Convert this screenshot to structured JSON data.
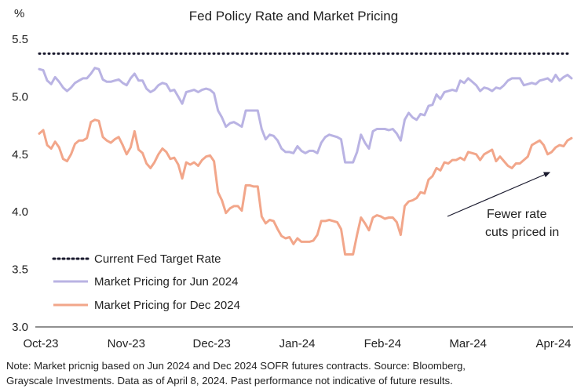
{
  "chart_data": {
    "type": "line",
    "title": "Fed Policy Rate and Market Pricing",
    "ylabel": "%",
    "ylim": [
      3.0,
      5.5
    ],
    "yticks": [
      "3.0",
      "3.5",
      "4.0",
      "4.5",
      "5.0",
      "5.5"
    ],
    "xticks": [
      "Oct-23",
      "Nov-23",
      "Dec-23",
      "Jan-24",
      "Feb-24",
      "Mar-24",
      "Apr-24"
    ],
    "x_index_range": [
      0,
      134
    ],
    "series": [
      {
        "name": "Current Fed Target Rate",
        "style": "dotted",
        "color": "#1a1a2e",
        "values": [
          5.375,
          5.375
        ]
      },
      {
        "name": "Market Pricing for Jun 2024",
        "style": "solid",
        "color": "#b9b3e3",
        "values": [
          5.24,
          5.23,
          5.14,
          5.11,
          5.17,
          5.13,
          5.08,
          5.05,
          5.08,
          5.12,
          5.14,
          5.16,
          5.16,
          5.2,
          5.25,
          5.24,
          5.15,
          5.13,
          5.13,
          5.14,
          5.15,
          5.12,
          5.1,
          5.16,
          5.2,
          5.14,
          5.14,
          5.07,
          5.04,
          5.06,
          5.1,
          5.12,
          5.11,
          5.05,
          5.06,
          5.0,
          4.94,
          5.04,
          5.05,
          5.06,
          5.04,
          5.06,
          5.07,
          5.06,
          5.03,
          4.88,
          4.82,
          4.74,
          4.77,
          4.78,
          4.76,
          4.74,
          4.88,
          4.88,
          4.88,
          4.88,
          4.72,
          4.63,
          4.67,
          4.66,
          4.62,
          4.55,
          4.52,
          4.52,
          4.51,
          4.57,
          4.53,
          4.51,
          4.53,
          4.53,
          4.51,
          4.6,
          4.65,
          4.67,
          4.66,
          4.65,
          4.63,
          4.43,
          4.43,
          4.43,
          4.52,
          4.67,
          4.6,
          4.55,
          4.7,
          4.72,
          4.72,
          4.72,
          4.71,
          4.72,
          4.68,
          4.62,
          4.8,
          4.86,
          4.82,
          4.8,
          4.85,
          4.84,
          4.92,
          4.93,
          5.02,
          4.98,
          5.04,
          5.05,
          5.06,
          5.05,
          5.14,
          5.12,
          5.16,
          5.13,
          5.1,
          5.05,
          5.08,
          5.07,
          5.05,
          5.08,
          5.07,
          5.1,
          5.14,
          5.16,
          5.16,
          5.16,
          5.1,
          5.11,
          5.12,
          5.11,
          5.14,
          5.15,
          5.16,
          5.13,
          5.19,
          5.14,
          5.17,
          5.19,
          5.16
        ]
      },
      {
        "name": "Market Pricing for Dec 2024",
        "style": "solid",
        "color": "#f2a68a",
        "values": [
          4.68,
          4.71,
          4.58,
          4.55,
          4.61,
          4.56,
          4.46,
          4.44,
          4.5,
          4.59,
          4.62,
          4.62,
          4.64,
          4.78,
          4.8,
          4.79,
          4.65,
          4.62,
          4.6,
          4.63,
          4.65,
          4.58,
          4.5,
          4.56,
          4.7,
          4.54,
          4.51,
          4.42,
          4.38,
          4.43,
          4.5,
          4.55,
          4.52,
          4.46,
          4.47,
          4.41,
          4.29,
          4.43,
          4.41,
          4.43,
          4.4,
          4.45,
          4.48,
          4.49,
          4.44,
          4.17,
          4.1,
          3.99,
          4.03,
          4.05,
          4.05,
          4.01,
          4.23,
          4.23,
          4.22,
          4.22,
          3.96,
          3.9,
          3.93,
          3.92,
          3.85,
          3.79,
          3.77,
          3.78,
          3.72,
          3.77,
          3.74,
          3.74,
          3.74,
          3.75,
          3.8,
          3.92,
          3.92,
          3.93,
          3.92,
          3.91,
          3.85,
          3.63,
          3.63,
          3.63,
          3.8,
          3.95,
          3.9,
          3.84,
          3.95,
          3.97,
          3.96,
          3.94,
          3.95,
          3.95,
          3.91,
          3.8,
          4.05,
          4.09,
          4.1,
          4.12,
          4.17,
          4.16,
          4.28,
          4.31,
          4.38,
          4.36,
          4.43,
          4.42,
          4.45,
          4.45,
          4.47,
          4.45,
          4.52,
          4.51,
          4.5,
          4.45,
          4.5,
          4.52,
          4.54,
          4.44,
          4.48,
          4.44,
          4.4,
          4.38,
          4.42,
          4.42,
          4.45,
          4.48,
          4.58,
          4.6,
          4.62,
          4.58,
          4.5,
          4.52,
          4.56,
          4.58,
          4.57,
          4.62,
          4.64
        ]
      }
    ],
    "legend": [
      "Current Fed Target Rate",
      "Market Pricing for Jun 2024",
      "Market Pricing for Dec 2024"
    ],
    "legend_placement": "bottom-left",
    "annotation": {
      "lines": [
        "Fewer rate",
        "cuts priced in"
      ]
    }
  },
  "note": {
    "line1": "Note: Market pricnig based on Jun 2024 and Dec 2024 SOFR futures contracts. Source: Bloomberg,",
    "line2": "Grayscale Investments. Data as of April 8, 2024. Past performance not indicative of future results."
  }
}
